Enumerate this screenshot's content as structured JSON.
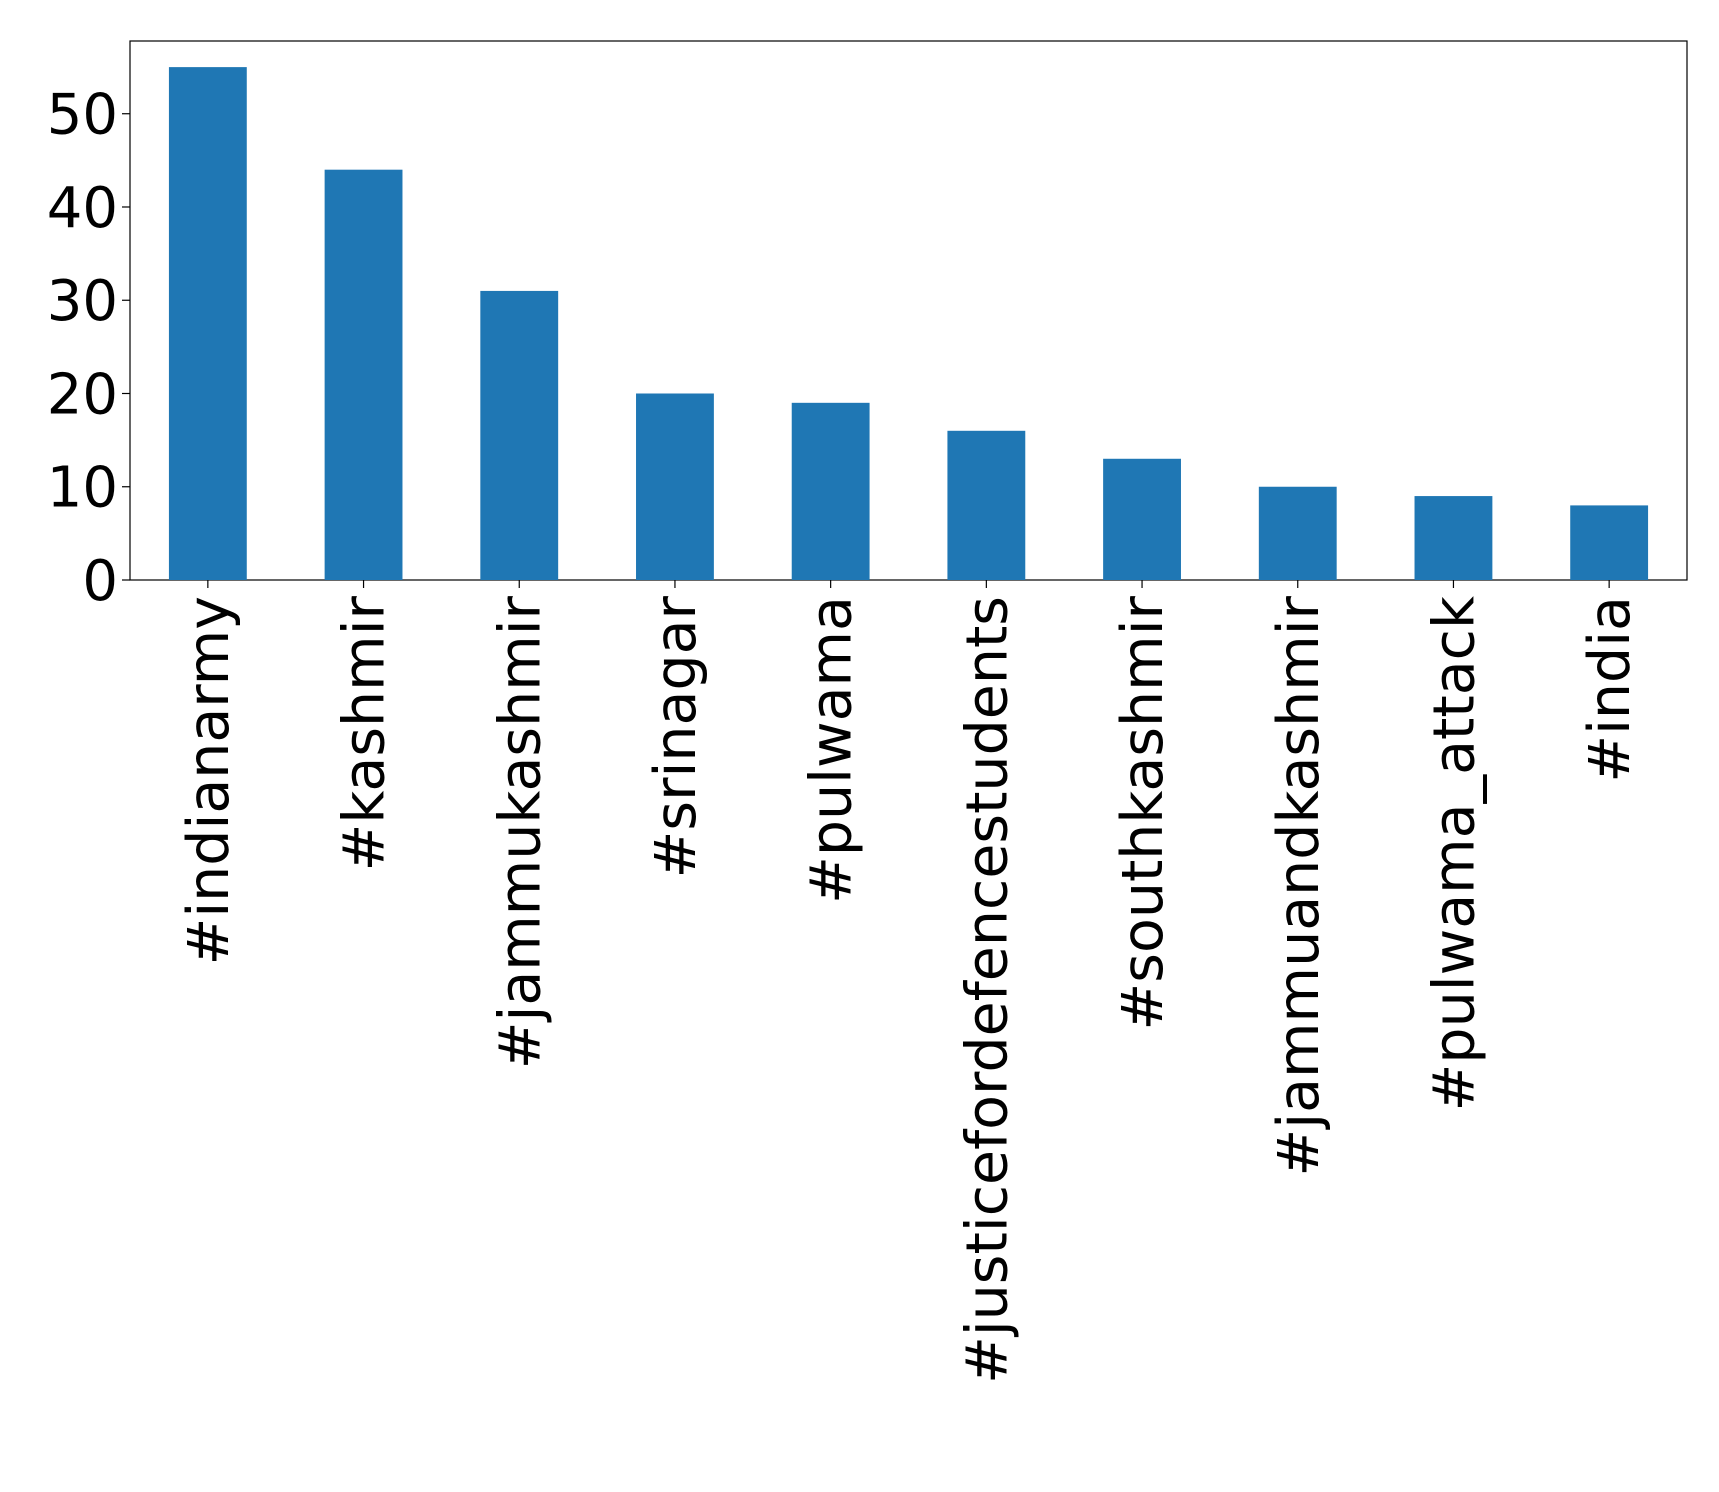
{
  "chart_data": {
    "type": "bar",
    "categories": [
      "#indianarmy",
      "#kashmir",
      "#jammukashmir",
      "#srinagar",
      "#pulwama",
      "#justicefordefencestudents",
      "#southkashmir",
      "#jammuandkashmir",
      "#pulwama_attack",
      "#india"
    ],
    "values": [
      55,
      44,
      31,
      20,
      19,
      16,
      13,
      10,
      9,
      8
    ],
    "color": "#1f77b4",
    "ylim": [
      0,
      57.8
    ],
    "yticks": [
      0,
      10,
      20,
      30,
      40,
      50
    ],
    "grid": false
  }
}
